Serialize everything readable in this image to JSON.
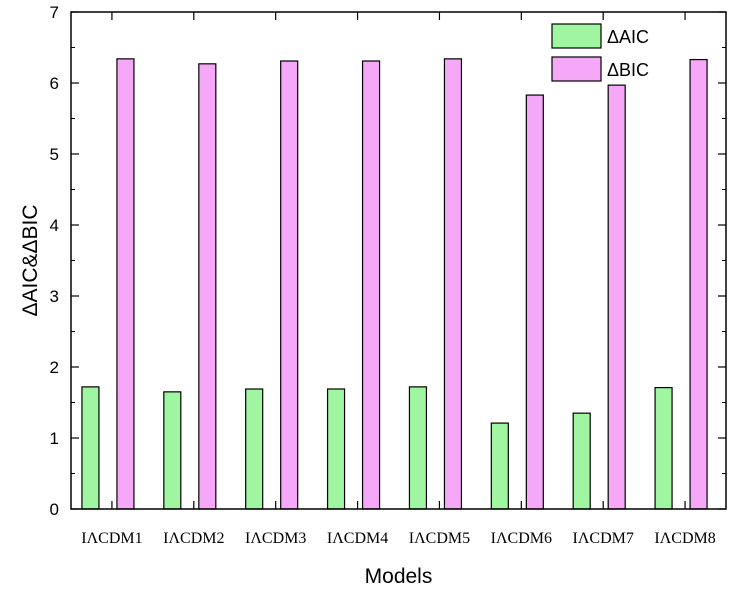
{
  "chart_data": {
    "type": "bar",
    "categories": [
      "IΛCDM1",
      "IΛCDM2",
      "IΛCDM3",
      "IΛCDM4",
      "IΛCDM5",
      "IΛCDM6",
      "IΛCDM7",
      "IΛCDM8"
    ],
    "series": [
      {
        "name": "ΔAIC",
        "color": "#a0f5a0",
        "values": [
          1.72,
          1.65,
          1.69,
          1.69,
          1.72,
          1.21,
          1.35,
          1.71
        ]
      },
      {
        "name": "ΔBIC",
        "color": "#f5a8f8",
        "values": [
          6.34,
          6.27,
          6.31,
          6.31,
          6.34,
          5.83,
          5.97,
          6.33
        ]
      }
    ],
    "xlabel": "Models",
    "ylabel": "ΔAIC&ΔBIC",
    "ylim": [
      0,
      7
    ],
    "yticks": [
      "0",
      "1",
      "2",
      "3",
      "4",
      "5",
      "6",
      "7"
    ],
    "legend_position": "top-right",
    "grid": false
  }
}
